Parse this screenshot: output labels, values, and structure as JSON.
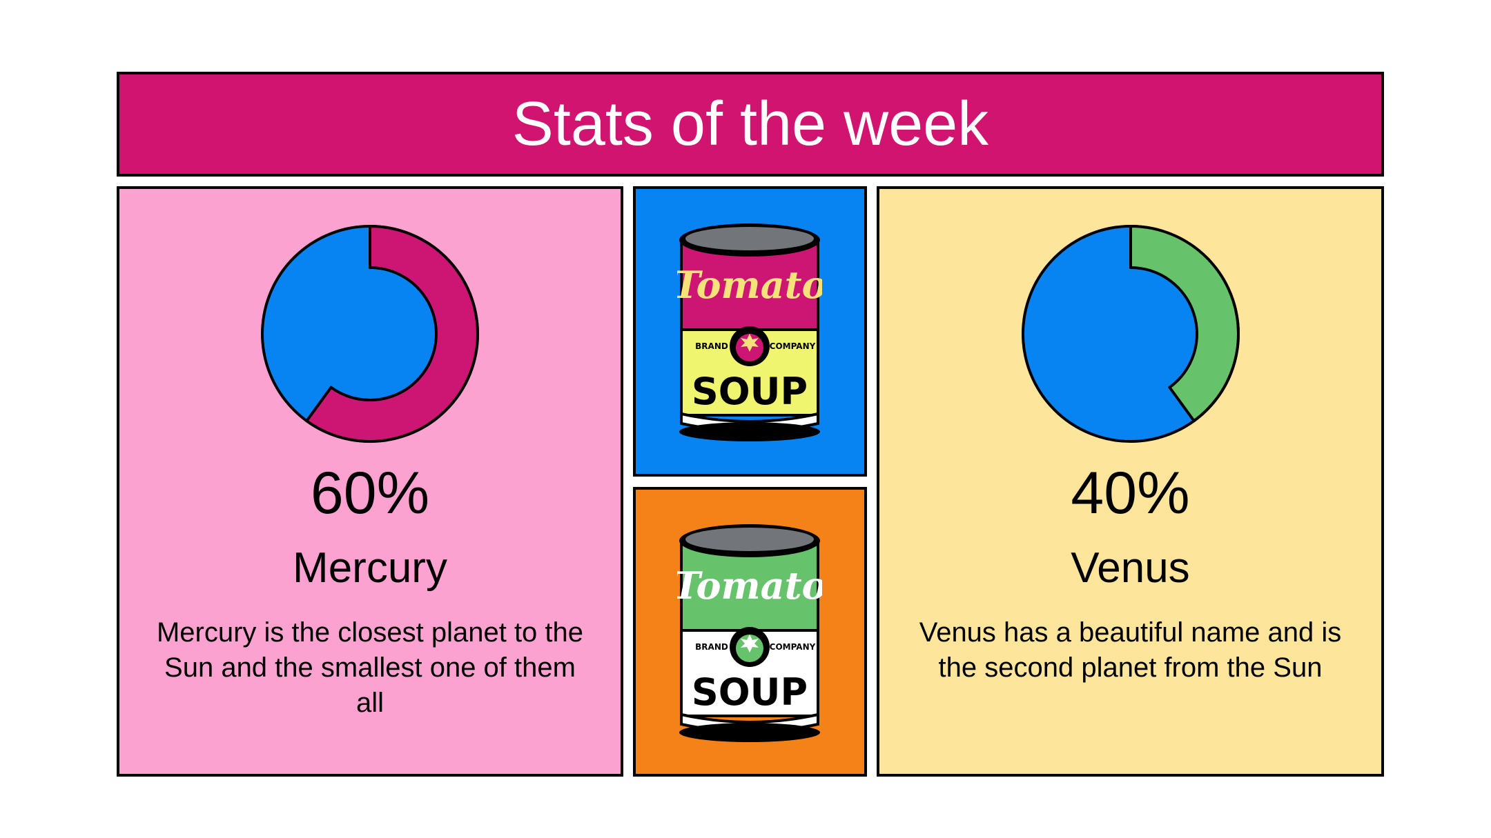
{
  "title": "Stats of the week",
  "colors": {
    "title_bg": "#d0146f",
    "blue": "#0884f2",
    "pink_bg": "#fca2d1",
    "yellow_bg": "#fde59b",
    "orange_bg": "#f58119",
    "magenta": "#cd1573",
    "green": "#67c36b"
  },
  "left_card": {
    "percent": "60%",
    "name": "Mercury",
    "description": "Mercury is the closest planet to the Sun and the smallest one of them all",
    "chart_fraction": 0.6
  },
  "right_card": {
    "percent": "40%",
    "name": "Venus",
    "description": "Venus has a beautiful name and is the second planet from the Sun",
    "chart_fraction": 0.4
  },
  "can_top": {
    "brand": "Tomato",
    "left_label": "BRAND",
    "right_label": "COMPANY",
    "product": "SOUP"
  },
  "can_bottom": {
    "brand": "Tomato",
    "left_label": "BRAND",
    "right_label": "COMPANY",
    "product": "SOUP"
  }
}
